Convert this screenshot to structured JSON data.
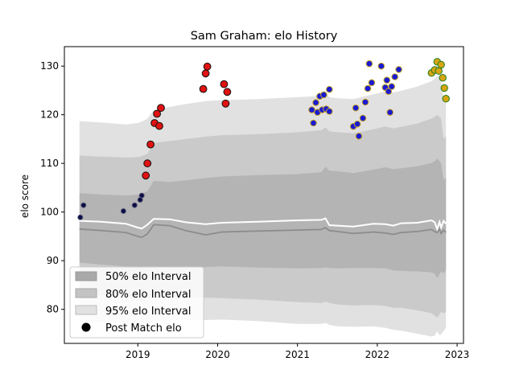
{
  "chart_data": {
    "type": "scatter",
    "title": "Sam Graham: elo History",
    "xlabel": "",
    "ylabel": "elo score",
    "xlim": [
      2018.08,
      2023.08
    ],
    "ylim": [
      73,
      134
    ],
    "x_ticks": [
      2019,
      2020,
      2021,
      2022,
      2023
    ],
    "y_ticks": [
      80,
      90,
      100,
      110,
      120,
      130
    ],
    "grid": false,
    "legend": {
      "placement": "lower-left",
      "entries": [
        {
          "label": "50% elo Interval",
          "color": "#a9a9a9"
        },
        {
          "label": "80% elo Interval",
          "color": "#c3c3c3"
        },
        {
          "label": "95% elo Interval",
          "color": "#e1e1e1"
        },
        {
          "label": "Post Match elo",
          "color": "#000000"
        }
      ]
    },
    "bands": {
      "x": [
        2018.27,
        2018.55,
        2018.85,
        2019.0,
        2019.05,
        2019.12,
        2019.2,
        2019.4,
        2019.6,
        2019.85,
        2020.05,
        2020.5,
        2021.0,
        2021.3,
        2021.35,
        2021.4,
        2021.5,
        2021.7,
        2021.95,
        2022.1,
        2022.2,
        2022.3,
        2022.5,
        2022.68,
        2022.72,
        2022.75,
        2022.78,
        2022.8,
        2022.83,
        2022.86
      ],
      "median": [
        96.5,
        96.2,
        95.8,
        95.0,
        94.8,
        95.5,
        97.4,
        97.2,
        96.2,
        95.3,
        95.9,
        96.1,
        96.3,
        96.4,
        96.8,
        96.2,
        96.0,
        95.6,
        95.9,
        95.7,
        95.4,
        95.8,
        96.0,
        96.4,
        96.0,
        95.8,
        96.5,
        95.6,
        96.3,
        95.8
      ],
      "upper_line": [
        98.2,
        98.0,
        97.6,
        96.8,
        96.6,
        97.4,
        98.6,
        98.5,
        97.9,
        97.5,
        97.8,
        98.0,
        98.3,
        98.4,
        98.7,
        97.3,
        97.2,
        97.0,
        97.6,
        97.5,
        97.2,
        97.7,
        97.8,
        98.3,
        97.9,
        96.5,
        98.0,
        96.8,
        98.2,
        97.6
      ],
      "ci50_low": [
        89.6,
        89.2,
        88.8,
        88.2,
        88.0,
        88.6,
        88.6,
        88.8,
        88.7,
        88.7,
        88.8,
        88.6,
        88.4,
        88.5,
        88.6,
        88.5,
        88.4,
        88.5,
        88.5,
        88.4,
        88.0,
        87.9,
        87.8,
        87.6,
        87.3,
        86.4,
        87.2,
        87.8,
        87.4,
        88.0
      ],
      "ci50_high": [
        103.9,
        103.6,
        103.4,
        103.6,
        103.8,
        104.3,
        106.4,
        106.2,
        106.5,
        107.0,
        107.3,
        107.6,
        107.8,
        108.2,
        109.3,
        108.5,
        108.4,
        108.0,
        108.7,
        109.2,
        108.8,
        109.0,
        109.4,
        110.1,
        110.5,
        111.0,
        110.5,
        110.0,
        106.6,
        107.0
      ],
      "ci80_low": [
        83.2,
        82.8,
        82.4,
        81.8,
        81.6,
        82.2,
        82.2,
        82.5,
        82.4,
        82.4,
        82.3,
        82.0,
        81.5,
        81.3,
        81.6,
        81.3,
        81.0,
        80.8,
        80.9,
        80.7,
        80.3,
        80.3,
        79.8,
        79.2,
        78.7,
        78.3,
        79.0,
        79.5,
        79.2,
        79.5
      ],
      "ci80_high": [
        111.6,
        111.4,
        111.2,
        111.3,
        111.5,
        112.0,
        114.2,
        114.6,
        115.0,
        115.5,
        115.8,
        116.0,
        116.4,
        116.8,
        117.4,
        116.6,
        116.4,
        116.2,
        117.0,
        117.6,
        117.2,
        117.5,
        118.2,
        119.2,
        119.6,
        120.0,
        119.6,
        119.2,
        115.0,
        115.6
      ],
      "ci95_low": [
        77.8,
        77.4,
        77.0,
        76.6,
        76.4,
        77.0,
        77.4,
        77.8,
        77.8,
        77.8,
        77.9,
        77.6,
        77.0,
        77.0,
        77.2,
        76.8,
        76.5,
        76.4,
        76.5,
        76.2,
        75.8,
        75.6,
        75.0,
        74.4,
        74.6,
        75.5,
        74.7,
        74.9,
        75.5,
        76.2
      ],
      "ci95_high": [
        118.7,
        118.4,
        118.0,
        118.3,
        118.6,
        119.2,
        121.0,
        121.6,
        122.2,
        122.8,
        123.0,
        123.2,
        123.6,
        123.9,
        124.6,
        123.6,
        123.4,
        123.2,
        124.2,
        124.8,
        124.6,
        124.9,
        125.8,
        126.9,
        127.4,
        128.0,
        127.4,
        126.9,
        123.4,
        124.4
      ]
    },
    "series": [
      {
        "fill": "#0b0b45",
        "edge": "#5a5a78",
        "radius": 3,
        "points": [
          [
            2018.28,
            98.9
          ],
          [
            2018.32,
            101.4
          ],
          [
            2018.82,
            100.2
          ],
          [
            2018.96,
            101.4
          ],
          [
            2019.03,
            102.5
          ],
          [
            2019.05,
            103.4
          ]
        ]
      },
      {
        "fill": "#e01212",
        "edge": "#111111",
        "radius": 4.4,
        "points": [
          [
            2019.1,
            107.5
          ],
          [
            2019.12,
            110.0
          ],
          [
            2019.16,
            113.9
          ],
          [
            2019.21,
            118.3
          ],
          [
            2019.24,
            120.2
          ],
          [
            2019.27,
            117.7
          ],
          [
            2019.29,
            121.4
          ],
          [
            2019.82,
            125.3
          ],
          [
            2019.85,
            128.5
          ],
          [
            2019.87,
            129.9
          ],
          [
            2020.08,
            126.3
          ],
          [
            2020.1,
            122.3
          ],
          [
            2020.12,
            124.7
          ]
        ]
      },
      {
        "fill": "#1a1ad2",
        "edge": "#c8a82a",
        "radius": 3.8,
        "points": [
          [
            2021.18,
            121.0
          ],
          [
            2021.2,
            118.3
          ],
          [
            2021.23,
            122.5
          ],
          [
            2021.25,
            120.5
          ],
          [
            2021.28,
            123.8
          ],
          [
            2021.31,
            121.0
          ],
          [
            2021.33,
            124.1
          ],
          [
            2021.36,
            121.2
          ],
          [
            2021.4,
            120.7
          ],
          [
            2021.4,
            125.2
          ],
          [
            2021.7,
            117.6
          ],
          [
            2021.73,
            121.4
          ],
          [
            2021.75,
            118.1
          ],
          [
            2021.77,
            115.6
          ],
          [
            2021.82,
            119.3
          ],
          [
            2021.85,
            122.6
          ],
          [
            2021.88,
            125.4
          ],
          [
            2021.9,
            130.5
          ],
          [
            2021.93,
            126.6
          ],
          [
            2022.05,
            130.0
          ],
          [
            2022.1,
            125.6
          ],
          [
            2022.12,
            127.1
          ],
          [
            2022.14,
            124.8
          ],
          [
            2022.16,
            120.5
          ],
          [
            2022.18,
            125.8
          ],
          [
            2022.22,
            127.8
          ],
          [
            2022.27,
            129.3
          ]
        ]
      },
      {
        "fill": "#d6a514",
        "edge": "#1e7a1e",
        "radius": 4.2,
        "points": [
          [
            2022.68,
            128.6
          ],
          [
            2022.72,
            129.2
          ],
          [
            2022.75,
            130.9
          ],
          [
            2022.77,
            129.0
          ],
          [
            2022.8,
            130.3
          ],
          [
            2022.82,
            127.6
          ],
          [
            2022.84,
            125.5
          ],
          [
            2022.86,
            123.3
          ]
        ]
      }
    ]
  }
}
